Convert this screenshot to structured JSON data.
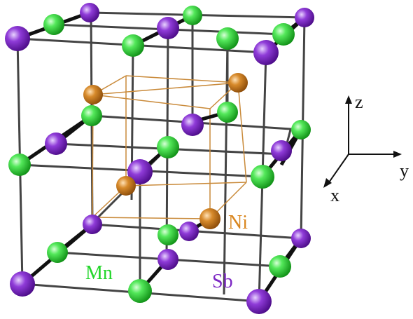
{
  "structure": {
    "elements": [
      {
        "symbol": "Ni",
        "color": "#d9861f"
      },
      {
        "symbol": "Mn",
        "color": "#22d62a"
      },
      {
        "symbol": "Sb",
        "color": "#7d28c4"
      }
    ],
    "frame_color": "#444444",
    "inner_cube_color": "#c98a3a"
  },
  "labels": {
    "ni": "Ni",
    "mn": "Mn",
    "sb": "Sb"
  },
  "axes": {
    "x": "x",
    "y": "y",
    "z": "z"
  }
}
